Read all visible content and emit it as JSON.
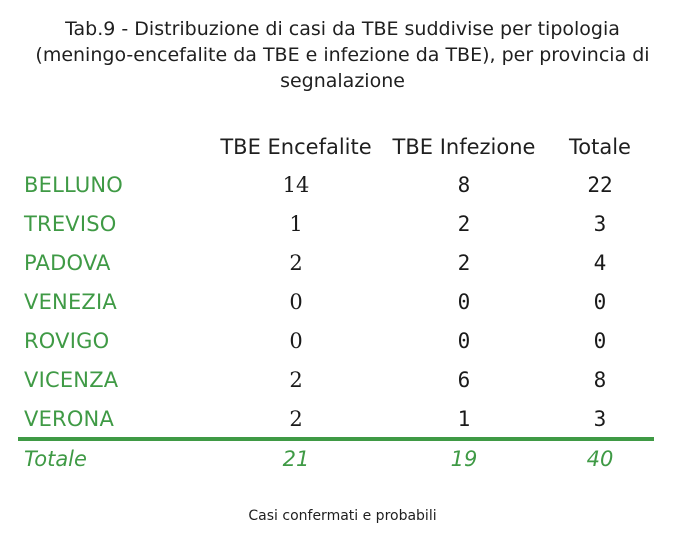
{
  "title": {
    "line1": "Tab.9 - Distribuzione di casi da TBE suddivise per tipologia",
    "line2": "(meningo-encefalite da TBE e infezione da TBE), per provincia di",
    "line3": "segnalazione"
  },
  "columns": [
    "",
    "TBE Encefalite",
    "TBE Infezione",
    "Totale"
  ],
  "rows": [
    {
      "province": "BELLUNO",
      "encefalite": "14",
      "infezione": "8",
      "totale": "22"
    },
    {
      "province": "TREVISO",
      "encefalite": "1",
      "infezione": "2",
      "totale": "3"
    },
    {
      "province": "PADOVA",
      "encefalite": "2",
      "infezione": "2",
      "totale": "4"
    },
    {
      "province": "VENEZIA",
      "encefalite": "0",
      "infezione": "0",
      "totale": "0"
    },
    {
      "province": "ROVIGO",
      "encefalite": "0",
      "infezione": "0",
      "totale": "0"
    },
    {
      "province": "VICENZA",
      "encefalite": "2",
      "infezione": "6",
      "totale": "8"
    },
    {
      "province": "VERONA",
      "encefalite": "2",
      "infezione": "1",
      "totale": "3"
    }
  ],
  "total": {
    "label": "Totale",
    "encefalite": "21",
    "infezione": "19",
    "totale": "40"
  },
  "footnote": "Casi confermati e probabili",
  "colors": {
    "accent": "#3f9a45",
    "text": "#1f1f1f"
  }
}
